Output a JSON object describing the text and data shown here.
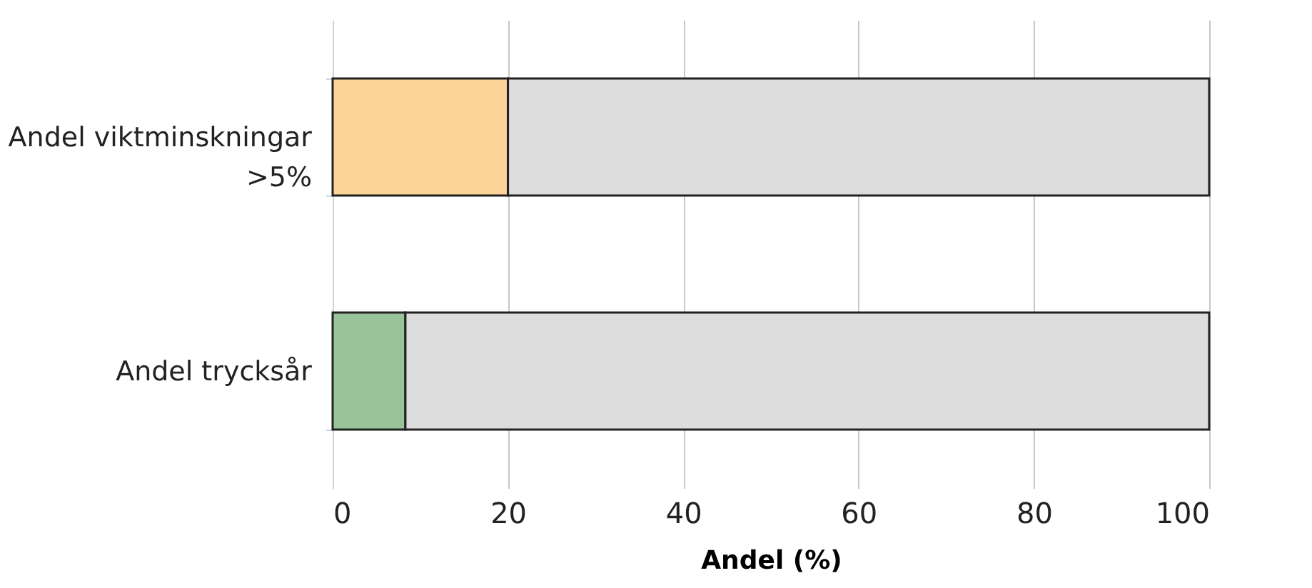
{
  "chart_data": {
    "type": "bar",
    "orientation": "horizontal",
    "stacked": true,
    "categories": [
      "Andel viktminskningar >5%",
      "Andel trycksår"
    ],
    "series": [
      {
        "colors": [
          "#fdd598",
          "#99c499"
        ],
        "values": [
          20,
          8.3
        ]
      },
      {
        "color": "#dddddd",
        "values": [
          80,
          91.7
        ]
      }
    ],
    "xlabel": "Andel (%)",
    "xlim": [
      0,
      100
    ],
    "xticks": [
      0,
      20,
      40,
      60,
      80,
      100
    ],
    "grid": "x"
  }
}
